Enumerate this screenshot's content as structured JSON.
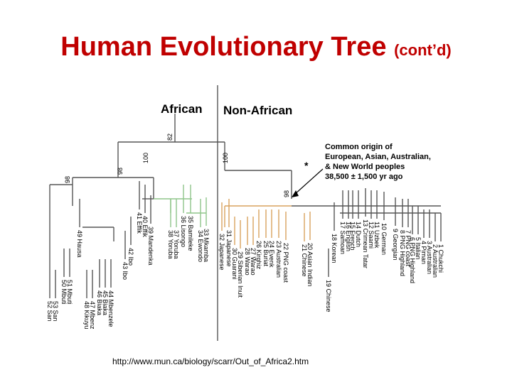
{
  "title": {
    "main": "Human Evolutionary Tree",
    "sub": "(cont’d)"
  },
  "groups": {
    "left": "African",
    "right": "Non-African"
  },
  "annotation": {
    "line1": "Common origin of",
    "line2": "European, Asian, Australian,",
    "line3": "& New World peoples",
    "line4": "38,500 ± 1,500 yr ago",
    "marker": "*"
  },
  "bootstrap": [
    "82",
    "100",
    "100",
    "98",
    "98",
    "98"
  ],
  "leaves": [
    "52 San",
    "53 San",
    "50 Mbuti",
    "51 Mbuti",
    "49 Hausa",
    "48 Kikuyu",
    "47 Mbenz",
    "46 Biaka",
    "45 Biaka",
    "44 Mbenzele",
    "43 Ibo",
    "42 Ibo",
    "41 Effik",
    "40 Effik",
    "39 Mandenka",
    "38 Yoruba",
    "37 Yoruba",
    "36 Lisongo",
    "35 Bamileke",
    "34 Ewondo",
    "33 Mkamba",
    "32 Japanese",
    "31 Japanese",
    "30 Guarani",
    "29 Siberian Inuit",
    "28 Warao",
    "27 Warao",
    "26 Kirghiz",
    "25 Buriat",
    "24 Evenk",
    "23 Australian",
    "22 PNG coast",
    "21 Chinese",
    "20 Asian Indian",
    "19 Chinese",
    "18 Korean",
    "17 Samoan",
    "16 English",
    "15 French",
    "14 Dutch",
    "13 Crimean Tatar",
    "12 Saami",
    "11 Uzbek",
    "10 German",
    "9 Georgian",
    "8 PNG Highland",
    "7 PNG coast",
    "6 PNG Highland",
    "5 Italian",
    "4 Piman",
    "3 Australian",
    "2 Australian",
    "1 Chukchi"
  ],
  "colors": {
    "title": "#c00000",
    "african": "#8fc58a",
    "non_african": "#d9a25e",
    "tree": "#555555",
    "text": "#000000"
  },
  "source_url": "http://www.mun.ca/biology/scarr/Out_of_Africa2.htm"
}
